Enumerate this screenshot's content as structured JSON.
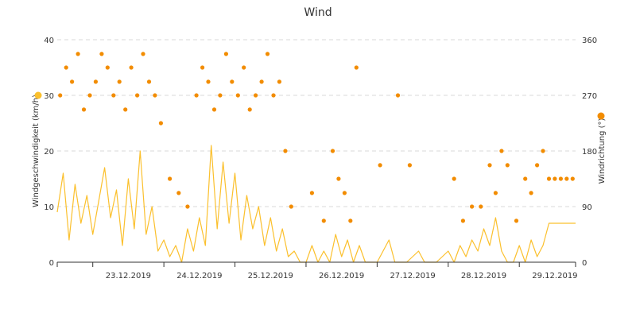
{
  "chart_data": {
    "type": "line",
    "title": "Wind",
    "colors": {
      "speed": "#fbc02d",
      "direction": "#f28c00",
      "grid": "#d9d9d9",
      "axis": "#333333"
    },
    "x_axis": {
      "type": "date",
      "range": [
        "2019-12-22T12:00",
        "2019-12-29T19:00"
      ],
      "tick_labels": [
        "23.12.2019",
        "24.12.2019",
        "25.12.2019",
        "26.12.2019",
        "27.12.2019",
        "28.12.2019",
        "29.12.2019"
      ]
    },
    "y_left": {
      "label": "Windgeschwindigkeit (km/h)",
      "ylim": [
        0,
        40
      ],
      "ticks": [
        "0",
        "10",
        "20",
        "30",
        "40"
      ]
    },
    "y_right": {
      "label": "Windrichtung (°)",
      "ylim": [
        0,
        360
      ],
      "ticks": [
        "0",
        "90",
        "180",
        "270",
        "360"
      ]
    },
    "grid": true,
    "series": [
      {
        "kind": "line",
        "axis": "left",
        "color": "#fbc02d",
        "legend_marker": true,
        "points": [
          [
            "2019-12-22T12:00",
            9
          ],
          [
            "2019-12-22T14:00",
            16
          ],
          [
            "2019-12-22T16:00",
            4
          ],
          [
            "2019-12-22T18:00",
            14
          ],
          [
            "2019-12-22T20:00",
            7
          ],
          [
            "2019-12-22T22:00",
            12
          ],
          [
            "2019-12-23T00:00",
            5
          ],
          [
            "2019-12-23T02:00",
            11
          ],
          [
            "2019-12-23T04:00",
            17
          ],
          [
            "2019-12-23T06:00",
            8
          ],
          [
            "2019-12-23T08:00",
            13
          ],
          [
            "2019-12-23T10:00",
            3
          ],
          [
            "2019-12-23T12:00",
            15
          ],
          [
            "2019-12-23T14:00",
            6
          ],
          [
            "2019-12-23T16:00",
            20
          ],
          [
            "2019-12-23T18:00",
            5
          ],
          [
            "2019-12-23T20:00",
            10
          ],
          [
            "2019-12-23T22:00",
            2
          ],
          [
            "2019-12-24T00:00",
            4
          ],
          [
            "2019-12-24T02:00",
            1
          ],
          [
            "2019-12-24T04:00",
            3
          ],
          [
            "2019-12-24T06:00",
            0
          ],
          [
            "2019-12-24T08:00",
            6
          ],
          [
            "2019-12-24T10:00",
            2
          ],
          [
            "2019-12-24T12:00",
            8
          ],
          [
            "2019-12-24T14:00",
            3
          ],
          [
            "2019-12-24T16:00",
            21
          ],
          [
            "2019-12-24T18:00",
            6
          ],
          [
            "2019-12-24T20:00",
            18
          ],
          [
            "2019-12-24T22:00",
            7
          ],
          [
            "2019-12-25T00:00",
            16
          ],
          [
            "2019-12-25T02:00",
            4
          ],
          [
            "2019-12-25T04:00",
            12
          ],
          [
            "2019-12-25T06:00",
            6
          ],
          [
            "2019-12-25T08:00",
            10
          ],
          [
            "2019-12-25T10:00",
            3
          ],
          [
            "2019-12-25T12:00",
            8
          ],
          [
            "2019-12-25T14:00",
            2
          ],
          [
            "2019-12-25T16:00",
            6
          ],
          [
            "2019-12-25T18:00",
            1
          ],
          [
            "2019-12-25T20:00",
            2
          ],
          [
            "2019-12-25T22:00",
            0
          ],
          [
            "2019-12-26T00:00",
            0
          ],
          [
            "2019-12-26T02:00",
            3
          ],
          [
            "2019-12-26T04:00",
            0
          ],
          [
            "2019-12-26T06:00",
            2
          ],
          [
            "2019-12-26T08:00",
            0
          ],
          [
            "2019-12-26T10:00",
            5
          ],
          [
            "2019-12-26T12:00",
            1
          ],
          [
            "2019-12-26T14:00",
            4
          ],
          [
            "2019-12-26T16:00",
            0
          ],
          [
            "2019-12-26T18:00",
            3
          ],
          [
            "2019-12-26T20:00",
            0
          ],
          [
            "2019-12-26T22:00",
            0
          ],
          [
            "2019-12-27T00:00",
            0
          ],
          [
            "2019-12-27T04:00",
            4
          ],
          [
            "2019-12-27T06:00",
            0
          ],
          [
            "2019-12-27T10:00",
            0
          ],
          [
            "2019-12-27T14:00",
            2
          ],
          [
            "2019-12-27T16:00",
            0
          ],
          [
            "2019-12-27T20:00",
            0
          ],
          [
            "2019-12-28T00:00",
            2
          ],
          [
            "2019-12-28T02:00",
            0
          ],
          [
            "2019-12-28T04:00",
            3
          ],
          [
            "2019-12-28T06:00",
            1
          ],
          [
            "2019-12-28T08:00",
            4
          ],
          [
            "2019-12-28T10:00",
            2
          ],
          [
            "2019-12-28T12:00",
            6
          ],
          [
            "2019-12-28T14:00",
            3
          ],
          [
            "2019-12-28T16:00",
            8
          ],
          [
            "2019-12-28T18:00",
            2
          ],
          [
            "2019-12-28T20:00",
            0
          ],
          [
            "2019-12-28T22:00",
            0
          ],
          [
            "2019-12-29T00:00",
            3
          ],
          [
            "2019-12-29T02:00",
            0
          ],
          [
            "2019-12-29T04:00",
            4
          ],
          [
            "2019-12-29T06:00",
            1
          ],
          [
            "2019-12-29T08:00",
            3
          ],
          [
            "2019-12-29T10:00",
            7
          ],
          [
            "2019-12-29T11:00",
            7
          ],
          [
            "2019-12-29T19:00",
            7
          ]
        ]
      },
      {
        "kind": "scatter",
        "axis": "right",
        "color": "#f28c00",
        "legend_marker": true,
        "points": [
          [
            "2019-12-22T13:00",
            270
          ],
          [
            "2019-12-22T15:00",
            315
          ],
          [
            "2019-12-22T17:00",
            292
          ],
          [
            "2019-12-22T19:00",
            337
          ],
          [
            "2019-12-22T21:00",
            247
          ],
          [
            "2019-12-22T23:00",
            270
          ],
          [
            "2019-12-23T01:00",
            292
          ],
          [
            "2019-12-23T03:00",
            337
          ],
          [
            "2019-12-23T05:00",
            315
          ],
          [
            "2019-12-23T07:00",
            270
          ],
          [
            "2019-12-23T09:00",
            292
          ],
          [
            "2019-12-23T11:00",
            247
          ],
          [
            "2019-12-23T13:00",
            315
          ],
          [
            "2019-12-23T15:00",
            270
          ],
          [
            "2019-12-23T17:00",
            337
          ],
          [
            "2019-12-23T19:00",
            292
          ],
          [
            "2019-12-23T21:00",
            270
          ],
          [
            "2019-12-23T23:00",
            225
          ],
          [
            "2019-12-24T02:00",
            135
          ],
          [
            "2019-12-24T05:00",
            112
          ],
          [
            "2019-12-24T08:00",
            90
          ],
          [
            "2019-12-24T11:00",
            270
          ],
          [
            "2019-12-24T13:00",
            315
          ],
          [
            "2019-12-24T15:00",
            292
          ],
          [
            "2019-12-24T17:00",
            247
          ],
          [
            "2019-12-24T19:00",
            270
          ],
          [
            "2019-12-24T21:00",
            337
          ],
          [
            "2019-12-24T23:00",
            292
          ],
          [
            "2019-12-25T01:00",
            270
          ],
          [
            "2019-12-25T03:00",
            315
          ],
          [
            "2019-12-25T05:00",
            247
          ],
          [
            "2019-12-25T07:00",
            270
          ],
          [
            "2019-12-25T09:00",
            292
          ],
          [
            "2019-12-25T11:00",
            337
          ],
          [
            "2019-12-25T13:00",
            270
          ],
          [
            "2019-12-25T15:00",
            292
          ],
          [
            "2019-12-25T17:00",
            180
          ],
          [
            "2019-12-25T19:00",
            90
          ],
          [
            "2019-12-26T02:00",
            112
          ],
          [
            "2019-12-26T06:00",
            67
          ],
          [
            "2019-12-26T09:00",
            180
          ],
          [
            "2019-12-26T11:00",
            135
          ],
          [
            "2019-12-26T13:00",
            112
          ],
          [
            "2019-12-26T15:00",
            67
          ],
          [
            "2019-12-26T17:00",
            315
          ],
          [
            "2019-12-27T01:00",
            157
          ],
          [
            "2019-12-27T07:00",
            270
          ],
          [
            "2019-12-27T11:00",
            157
          ],
          [
            "2019-12-28T02:00",
            135
          ],
          [
            "2019-12-28T05:00",
            67
          ],
          [
            "2019-12-28T08:00",
            90
          ],
          [
            "2019-12-28T11:00",
            90
          ],
          [
            "2019-12-28T14:00",
            157
          ],
          [
            "2019-12-28T16:00",
            112
          ],
          [
            "2019-12-28T18:00",
            180
          ],
          [
            "2019-12-28T20:00",
            157
          ],
          [
            "2019-12-28T23:00",
            67
          ],
          [
            "2019-12-29T02:00",
            135
          ],
          [
            "2019-12-29T04:00",
            112
          ],
          [
            "2019-12-29T06:00",
            157
          ],
          [
            "2019-12-29T08:00",
            180
          ],
          [
            "2019-12-29T10:00",
            135
          ],
          [
            "2019-12-29T12:00",
            135
          ],
          [
            "2019-12-29T14:00",
            135
          ],
          [
            "2019-12-29T16:00",
            135
          ],
          [
            "2019-12-29T18:00",
            135
          ]
        ]
      }
    ]
  }
}
